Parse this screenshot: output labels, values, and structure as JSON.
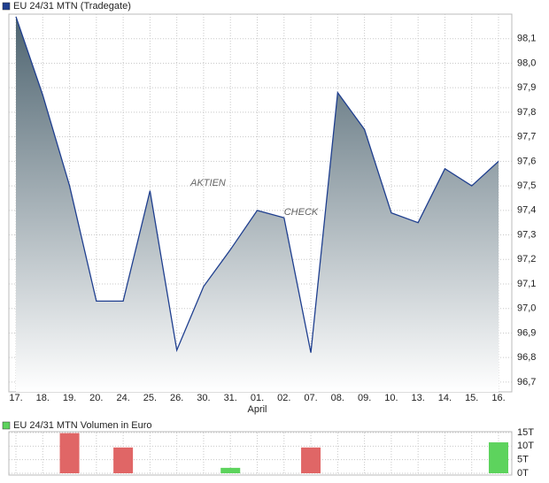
{
  "chart_data": [
    {
      "type": "area",
      "title": "EU 24/31 MTN (Tradegate)",
      "legend_color": "#1f3f8f",
      "watermark": [
        "AKTIEN",
        "CHECK"
      ],
      "categories": [
        "17.",
        "18.",
        "19.",
        "20.",
        "24.",
        "25.",
        "26.",
        "30.",
        "31.",
        "01.",
        "02.",
        "07.",
        "08.",
        "09.",
        "10.",
        "13.",
        "14.",
        "15.",
        "16."
      ],
      "annotations": [
        {
          "text": "April",
          "category": "01."
        }
      ],
      "values": [
        98.19,
        97.87,
        97.5,
        97.03,
        97.03,
        97.48,
        96.83,
        97.09,
        97.24,
        97.4,
        97.37,
        96.82,
        97.88,
        97.73,
        97.39,
        97.35,
        97.57,
        97.5,
        97.6
      ],
      "color": "#1f3f8f",
      "fill_top": "#4e6470",
      "fill_bottom": "#ffffff",
      "ylim": [
        96.66,
        98.2
      ],
      "yticks": [
        {
          "value": 96.7,
          "label": "96,7"
        },
        {
          "value": 96.8,
          "label": "96,8"
        },
        {
          "value": 96.9,
          "label": "96,9"
        },
        {
          "value": 97.0,
          "label": "97,0"
        },
        {
          "value": 97.1,
          "label": "97,1"
        },
        {
          "value": 97.2,
          "label": "97,2"
        },
        {
          "value": 97.3,
          "label": "97,3"
        },
        {
          "value": 97.4,
          "label": "97,4"
        },
        {
          "value": 97.5,
          "label": "97,5"
        },
        {
          "value": 97.6,
          "label": "97,6"
        },
        {
          "value": 97.7,
          "label": "97,7"
        },
        {
          "value": 97.8,
          "label": "97,8"
        },
        {
          "value": 97.9,
          "label": "97,9"
        },
        {
          "value": 98.0,
          "label": "98,0"
        },
        {
          "value": 98.1,
          "label": "98,1"
        }
      ],
      "grid": true
    },
    {
      "type": "bar",
      "title": "EU 24/31 MTN Volumen in Euro",
      "legend_color": "#5dd35d",
      "values": [
        0,
        0,
        14.8,
        0,
        9.5,
        0,
        0,
        0,
        2,
        0,
        0,
        9.5,
        0,
        0,
        0,
        0,
        0,
        0,
        11.4
      ],
      "colors": [
        "#e06666",
        "#e06666",
        "#e06666",
        "#e06666",
        "#e06666",
        "#e06666",
        "#e06666",
        "#e06666",
        "#5dd35d",
        "#5dd35d",
        "#5dd35d",
        "#e06666",
        "#5dd35d",
        "#5dd35d",
        "#5dd35d",
        "#5dd35d",
        "#5dd35d",
        "#5dd35d",
        "#5dd35d"
      ],
      "ylim": [
        0,
        15
      ],
      "yticks": [
        {
          "value": 0,
          "label": "0T"
        },
        {
          "value": 5,
          "label": "5T"
        },
        {
          "value": 10,
          "label": "10T"
        },
        {
          "value": 15,
          "label": "15T"
        }
      ],
      "grid": true
    }
  ]
}
